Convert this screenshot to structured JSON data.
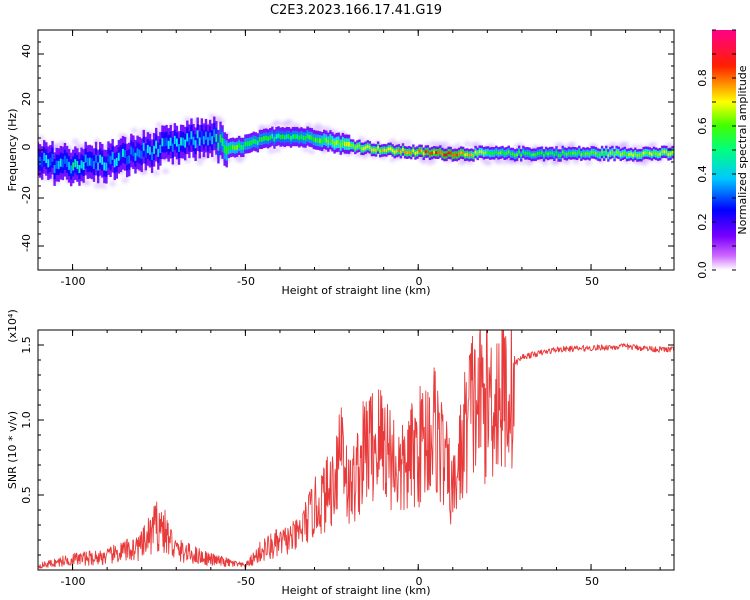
{
  "figure_title": "C2E3.2023.166.17.41.G19",
  "chart_data": [
    {
      "type": "heatmap",
      "xlabel": "Height of straight line (km)",
      "ylabel": "Frequency (Hz)",
      "xlim": [
        -110,
        74
      ],
      "ylim": [
        -50,
        50
      ],
      "xticks": [
        -100,
        -50,
        0,
        50
      ],
      "xtick_labels": [
        "-100",
        "-50",
        "0",
        "50"
      ],
      "yticks": [
        40,
        20,
        0,
        -20,
        -40
      ],
      "ytick_labels": [
        "40",
        "20",
        "0",
        "-20",
        "-40"
      ],
      "colorbar": {
        "label": "Normalized spectral amplitude",
        "range": [
          0,
          1
        ],
        "ticks": [
          0.0,
          0.2,
          0.4,
          0.6,
          0.8
        ],
        "tick_labels": [
          "0.0",
          "0.2",
          "0.4",
          "0.6",
          "0.8"
        ],
        "colors": [
          "#ffffff",
          "#9900ff",
          "#0000ff",
          "#00ffff",
          "#00ff00",
          "#ffff00",
          "#ff0000",
          "#ff0099"
        ]
      },
      "ridge": {
        "x": [
          -110,
          -100,
          -90,
          -80,
          -70,
          -60,
          -55,
          -50,
          -40,
          -30,
          -20,
          -10,
          0,
          10,
          20,
          30,
          40,
          50,
          60,
          74
        ],
        "frequency": [
          -5,
          -6,
          -5,
          -1,
          2,
          6,
          0,
          2,
          6,
          5,
          2,
          0,
          -1,
          -1.5,
          -1.5,
          -1.5,
          -1.5,
          -1.5,
          -1.5,
          -1.5
        ],
        "amplitude": [
          0.3,
          0.35,
          0.3,
          0.3,
          0.32,
          0.3,
          0.55,
          0.5,
          0.45,
          0.5,
          0.65,
          0.7,
          0.75,
          0.85,
          0.55,
          0.5,
          0.5,
          0.55,
          0.6,
          0.65
        ]
      }
    },
    {
      "type": "line",
      "xlabel": "Height of straight line (km)",
      "ylabel": "SNR (10 * v/v)",
      "scale_label": "(x10⁴)",
      "xlim": [
        -110,
        74
      ],
      "ylim": [
        0,
        1.6
      ],
      "xticks": [
        -100,
        -50,
        0,
        50
      ],
      "xtick_labels": [
        "-100",
        "-50",
        "0",
        "50"
      ],
      "yticks": [
        0.5,
        1.0,
        1.5
      ],
      "ytick_labels": [
        "0.5",
        "1.0",
        "1.5"
      ],
      "series": [
        {
          "color": "#e83a3a",
          "x": [
            -110,
            -100,
            -90,
            -80,
            -75,
            -70,
            -60,
            -50,
            -45,
            -40,
            -35,
            -30,
            -25,
            -22,
            -20,
            -15,
            -10,
            -5,
            0,
            5,
            10,
            15,
            20,
            25,
            30,
            40,
            50,
            60,
            70,
            74
          ],
          "snr": [
            0.03,
            0.08,
            0.1,
            0.18,
            0.35,
            0.15,
            0.08,
            0.03,
            0.15,
            0.2,
            0.25,
            0.45,
            0.6,
            1.0,
            0.55,
            0.9,
            0.95,
            0.7,
            0.9,
            1.05,
            0.55,
            1.2,
            1.25,
            1.3,
            1.42,
            1.47,
            1.48,
            1.49,
            1.47,
            1.47
          ]
        }
      ]
    }
  ]
}
